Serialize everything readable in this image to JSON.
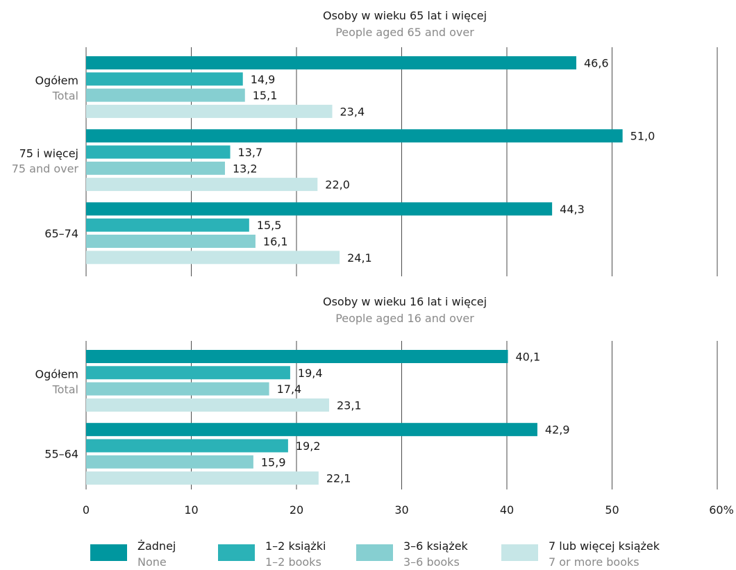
{
  "chart_data": {
    "type": "bar",
    "orientation": "horizontal",
    "xlim": [
      0,
      60
    ],
    "x_ticks": [
      "0",
      "10",
      "20",
      "30",
      "40",
      "50",
      "60%"
    ],
    "grid": true,
    "legend_position": "bottom",
    "series": [
      {
        "name": "Żadnej",
        "name_en": "None",
        "color": "#00979f"
      },
      {
        "name": "1–2 książki",
        "name_en": "1–2 books",
        "color": "#2bb2b7"
      },
      {
        "name": "3–6 książek",
        "name_en": "3–6 books",
        "color": "#86cfd1"
      },
      {
        "name": "7 lub więcej książek",
        "name_en": "7 or more books",
        "color": "#c6e6e7"
      }
    ],
    "panels": [
      {
        "title": "Osoby w wieku 65 lat i więcej",
        "subtitle": "People aged 65 and over",
        "groups": [
          {
            "label": "Ogółem",
            "label_en": "Total",
            "values": [
              46.6,
              14.9,
              15.1,
              23.4
            ],
            "value_labels": [
              "46,6",
              "14,9",
              "15,1",
              "23,4"
            ]
          },
          {
            "label": "75 i więcej",
            "label_en": "75 and over",
            "values": [
              51.0,
              13.7,
              13.2,
              22.0
            ],
            "value_labels": [
              "51,0",
              "13,7",
              "13,2",
              "22,0"
            ]
          },
          {
            "label": "65–74",
            "label_en": "",
            "values": [
              44.3,
              15.5,
              16.1,
              24.1
            ],
            "value_labels": [
              "44,3",
              "15,5",
              "16,1",
              "24,1"
            ]
          }
        ]
      },
      {
        "title": "Osoby w wieku 16 lat i więcej",
        "subtitle": "People aged 16 and over",
        "groups": [
          {
            "label": "Ogółem",
            "label_en": "Total",
            "values": [
              40.1,
              19.4,
              17.4,
              23.1
            ],
            "value_labels": [
              "40,1",
              "19,4",
              "17,4",
              "23,1"
            ]
          },
          {
            "label": "55–64",
            "label_en": "",
            "values": [
              42.9,
              19.2,
              15.9,
              22.1
            ],
            "value_labels": [
              "42,9",
              "19,2",
              "15,9",
              "22,1"
            ]
          }
        ]
      }
    ]
  }
}
